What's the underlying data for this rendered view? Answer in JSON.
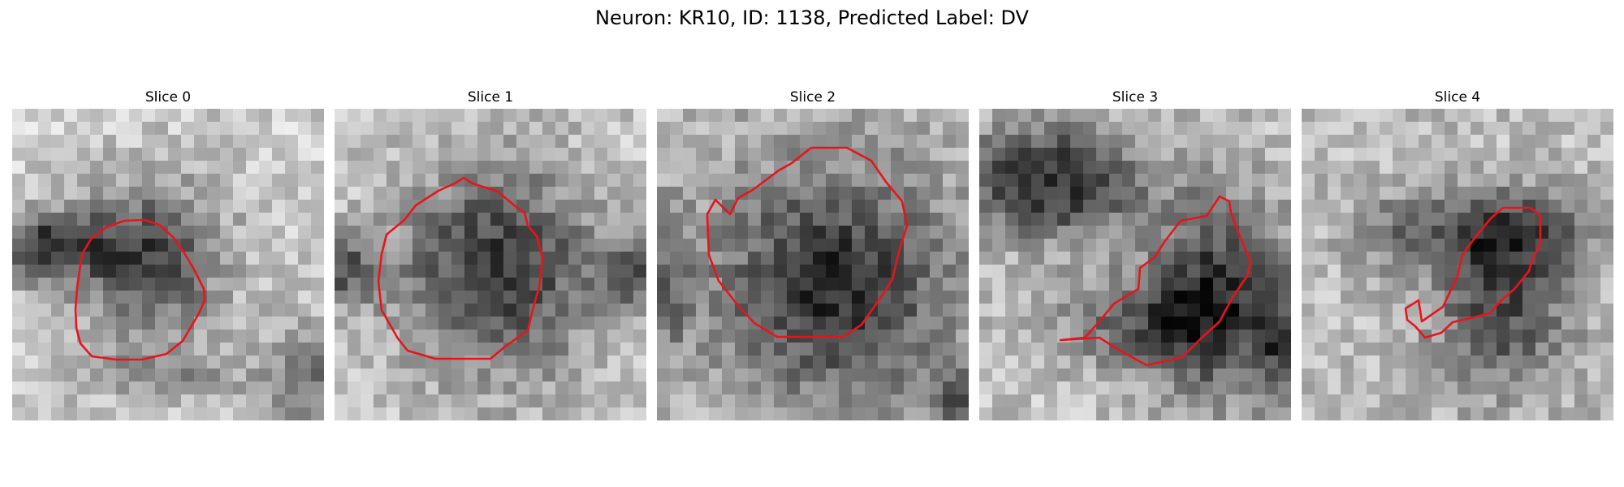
{
  "figure": {
    "title": "Neuron: KR10, ID: 1138, Predicted Label: DV"
  },
  "panels": [
    {
      "title": "Slice 0"
    },
    {
      "title": "Slice 1"
    },
    {
      "title": "Slice 2"
    },
    {
      "title": "Slice 3"
    },
    {
      "title": "Slice 4"
    }
  ],
  "colors": {
    "contour": "#e8141b",
    "background": "#ffffff"
  }
}
